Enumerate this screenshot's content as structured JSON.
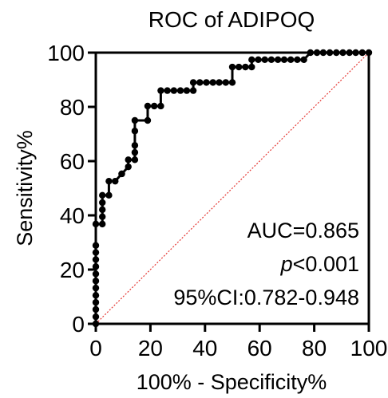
{
  "chart_data": {
    "type": "line",
    "title": "ROC of ADIPOQ",
    "xlabel": "100% - Specificity%",
    "ylabel": "Sensitivity%",
    "xlim": [
      0,
      100
    ],
    "ylim": [
      0,
      100
    ],
    "xticks": [
      0,
      20,
      40,
      60,
      80,
      100
    ],
    "yticks": [
      0,
      20,
      40,
      60,
      80,
      100
    ],
    "grid": false,
    "colors": {
      "roc": "#000000",
      "reference": "#e53935"
    },
    "series": [
      {
        "x": [
          0,
          0,
          0,
          0,
          0,
          0,
          0,
          0,
          0,
          0,
          0,
          0,
          0,
          2.4,
          2.4,
          2.4,
          2.4,
          2.4,
          4.8,
          4.8,
          7.1,
          9.5,
          9.5,
          11.9,
          11.9,
          14.3,
          14.3,
          14.3,
          14.3,
          14.3,
          19.0,
          19.0,
          21.4,
          23.8,
          23.8,
          26.2,
          28.6,
          31.0,
          33.3,
          35.7,
          35.7,
          38.1,
          40.5,
          42.9,
          45.2,
          47.6,
          50.0,
          50.0,
          52.4,
          54.8,
          57.1,
          57.1,
          59.5,
          61.9,
          64.3,
          66.7,
          69.0,
          71.4,
          73.8,
          76.2,
          78.6,
          81.0,
          83.3,
          85.7,
          88.1,
          90.5,
          92.9,
          95.2,
          97.6,
          100
        ],
        "y": [
          0,
          2.6,
          5.3,
          7.9,
          10.5,
          13.2,
          15.8,
          18.4,
          21.1,
          23.7,
          26.3,
          28.9,
          36.8,
          36.8,
          39.5,
          42.1,
          44.7,
          47.4,
          47.4,
          52.6,
          52.6,
          55.3,
          55.3,
          57.9,
          60.5,
          60.5,
          63.2,
          65.8,
          71.1,
          75.0,
          75.0,
          80.3,
          80.3,
          80.3,
          86.0,
          86.0,
          86.0,
          86.0,
          86.0,
          86.0,
          89.0,
          89.0,
          89.0,
          89.0,
          89.0,
          89.0,
          89.0,
          94.7,
          94.7,
          94.7,
          94.7,
          97.4,
          97.4,
          97.4,
          97.4,
          97.4,
          97.4,
          97.4,
          97.4,
          97.4,
          100,
          100,
          100,
          100,
          100,
          100,
          100,
          100,
          100,
          100
        ]
      }
    ],
    "annotations": [
      "AUC=0.865",
      "p<0.001",
      "95%CI:0.782-0.948"
    ]
  },
  "labels": {
    "title": "ROC of ADIPOQ",
    "xlabel": "100% - Specificity%",
    "ylabel": "Sensitivity%",
    "auc": "AUC=0.865",
    "p_italic": "p",
    "p_rest": "<0.001",
    "ci": "95%CI:0.782-0.948"
  }
}
